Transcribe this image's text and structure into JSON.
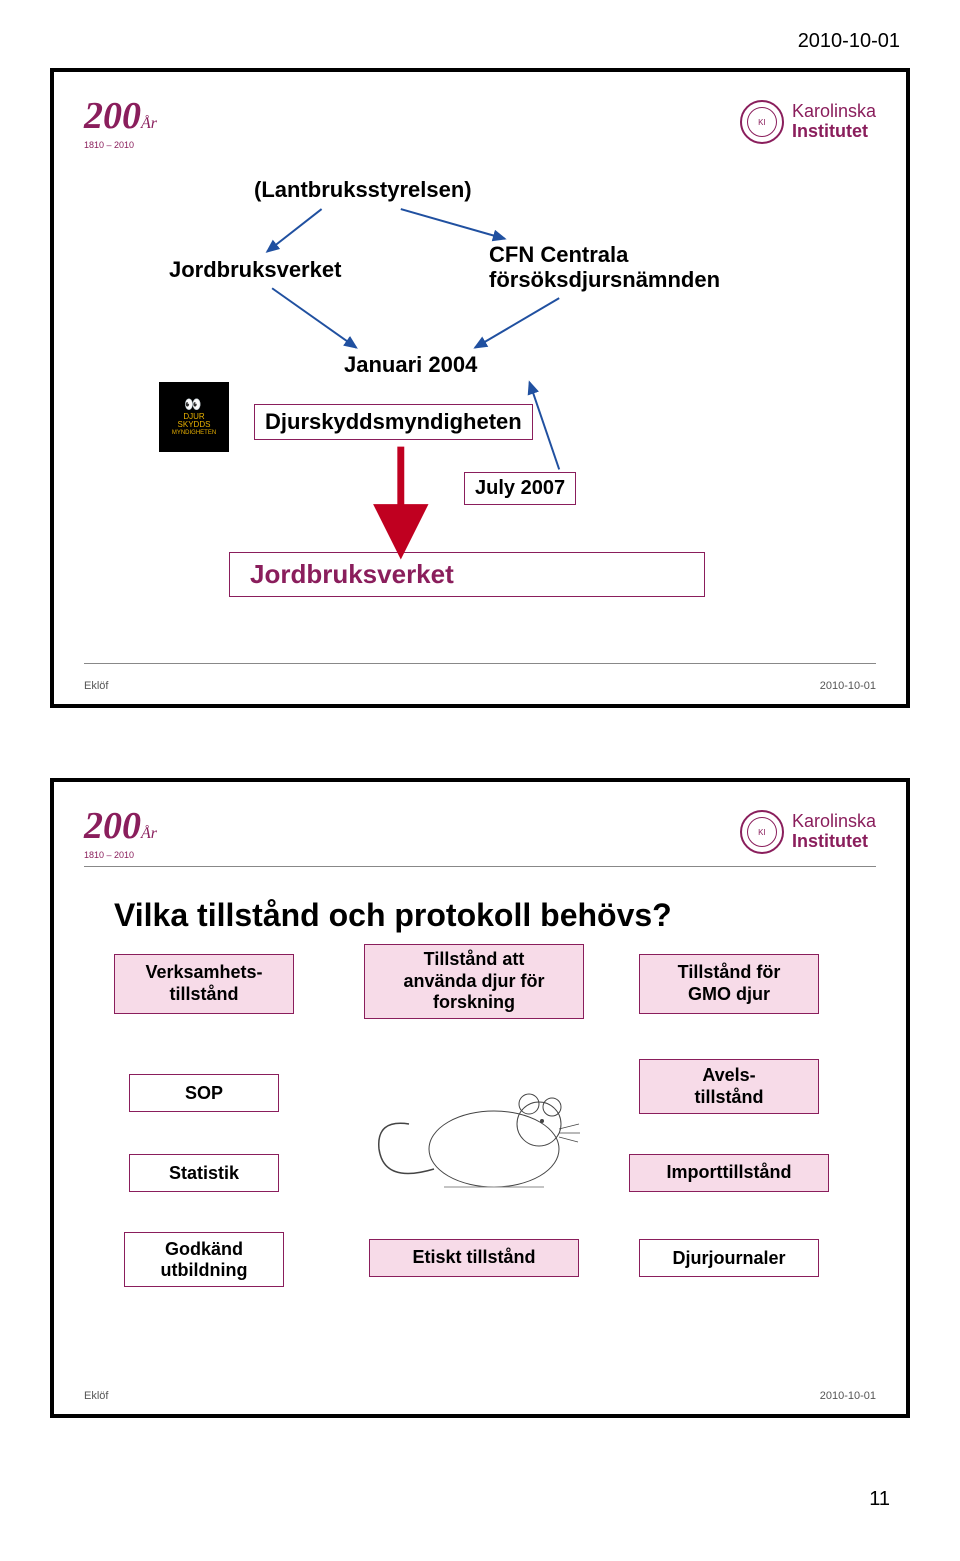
{
  "header_date": "2010-10-01",
  "colors": {
    "primary": "#8a1e5c",
    "pink_fill": "#f7dbe8",
    "arrow_red": "#c00020",
    "arrow_blue": "#2050a0",
    "black": "#000000",
    "djur_gold": "#e8b000",
    "grey_line": "#888888"
  },
  "logo": {
    "big": "200",
    "suffix": "År",
    "years": "1810 – 2010"
  },
  "ki": {
    "line1": "Karolinska",
    "line2": "Institutet"
  },
  "slide1": {
    "lantbruk": "(Lantbruksstyrelsen)",
    "jordbruk1": "Jordbruksverket",
    "cfn_line1": "CFN Centrala",
    "cfn_line2": "försöksdjursnämnden",
    "januari": "Januari 2004",
    "djurskydd": "Djurskyddsmyndigheten",
    "july": "July 2007",
    "jordbruk2": "Jordbruksverket",
    "djur_badge": {
      "line1": "DJUR",
      "line2": "SKYDDS",
      "line3": "MYNDIGHETEN"
    },
    "footer_left": "Eklöf",
    "footer_right": "2010-10-01"
  },
  "slide2": {
    "title": "Vilka tillstånd och protokoll behövs?",
    "boxes": {
      "verksamhet": "Verksamhets-\ntillstånd",
      "tillstand_att": "Tillstånd att\nanvända djur för\nforskning",
      "gmo": "Tillstånd för\nGMO djur",
      "sop": "SOP",
      "avel": "Avels-\ntillstånd",
      "statistik": "Statistik",
      "import": "Importtillstånd",
      "godkand": "Godkänd\nutbildning",
      "etiskt": "Etiskt tillstånd",
      "djurjournaler": "Djurjournaler"
    },
    "footer_left": "Eklöf",
    "footer_right": "2010-10-01"
  },
  "page_number": "11"
}
